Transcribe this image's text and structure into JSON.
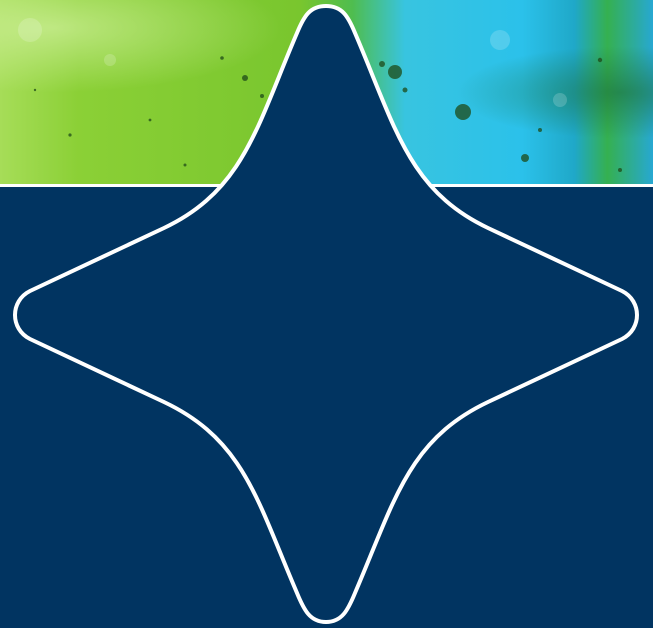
{
  "colors": {
    "navy_panel": "#013461",
    "outline": "#ffffff",
    "photo_green": "#8fd135",
    "photo_cyan": "#33c7e8"
  },
  "icons": {
    "main_shape": "four-point-star-icon",
    "background_photo": "texture-photo"
  }
}
